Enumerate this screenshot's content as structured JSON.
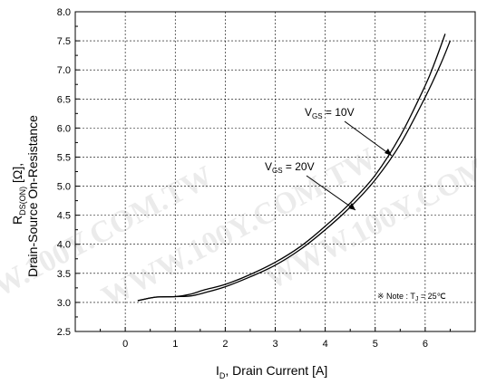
{
  "chart_data": {
    "type": "line",
    "xlabel": "I_D, Drain Current [A]",
    "ylabel_line1": "R_DS(ON) [Ω],",
    "ylabel_line2": "Drain-Source On-Resistance",
    "xlim": [
      -1,
      7
    ],
    "ylim": [
      2.5,
      8.0
    ],
    "x_ticks": [
      "0",
      "1",
      "2",
      "3",
      "4",
      "5",
      "6"
    ],
    "y_ticks": [
      "2.5",
      "3.0",
      "3.5",
      "4.0",
      "4.5",
      "5.0",
      "5.5",
      "6.0",
      "6.5",
      "7.0",
      "7.5",
      "8.0"
    ],
    "grid": true,
    "series": [
      {
        "name": "V_GS = 10V",
        "x": [
          0.25,
          0.6,
          1.0,
          1.3,
          1.6,
          2.0,
          2.5,
          3.0,
          3.5,
          4.0,
          4.5,
          5.0,
          5.5,
          6.0,
          6.2,
          6.4
        ],
        "y": [
          3.03,
          3.09,
          3.1,
          3.14,
          3.22,
          3.31,
          3.48,
          3.69,
          3.96,
          4.31,
          4.71,
          5.19,
          5.86,
          6.73,
          7.15,
          7.62
        ]
      },
      {
        "name": "V_GS = 20V",
        "x": [
          0.25,
          0.6,
          1.0,
          1.3,
          1.6,
          2.0,
          2.5,
          3.0,
          3.5,
          4.0,
          4.5,
          5.0,
          5.5,
          6.0,
          6.3,
          6.5
        ],
        "y": [
          3.03,
          3.09,
          3.1,
          3.11,
          3.17,
          3.27,
          3.44,
          3.64,
          3.91,
          4.25,
          4.64,
          5.11,
          5.72,
          6.53,
          7.08,
          7.5
        ]
      }
    ],
    "annotations": [
      {
        "label_main": "V",
        "label_sub": "GS",
        "label_rest": " = 10V"
      },
      {
        "label_main": "V",
        "label_sub": "GS",
        "label_rest": " = 20V"
      }
    ],
    "note": "※ Note : T",
    "note_sub": "J",
    "note_rest": " = 25℃"
  },
  "watermark": [
    "WWW.100Y.COM.TW",
    "WWW.100Y.COM.TW",
    "WWW.100Y.COM.TW"
  ]
}
